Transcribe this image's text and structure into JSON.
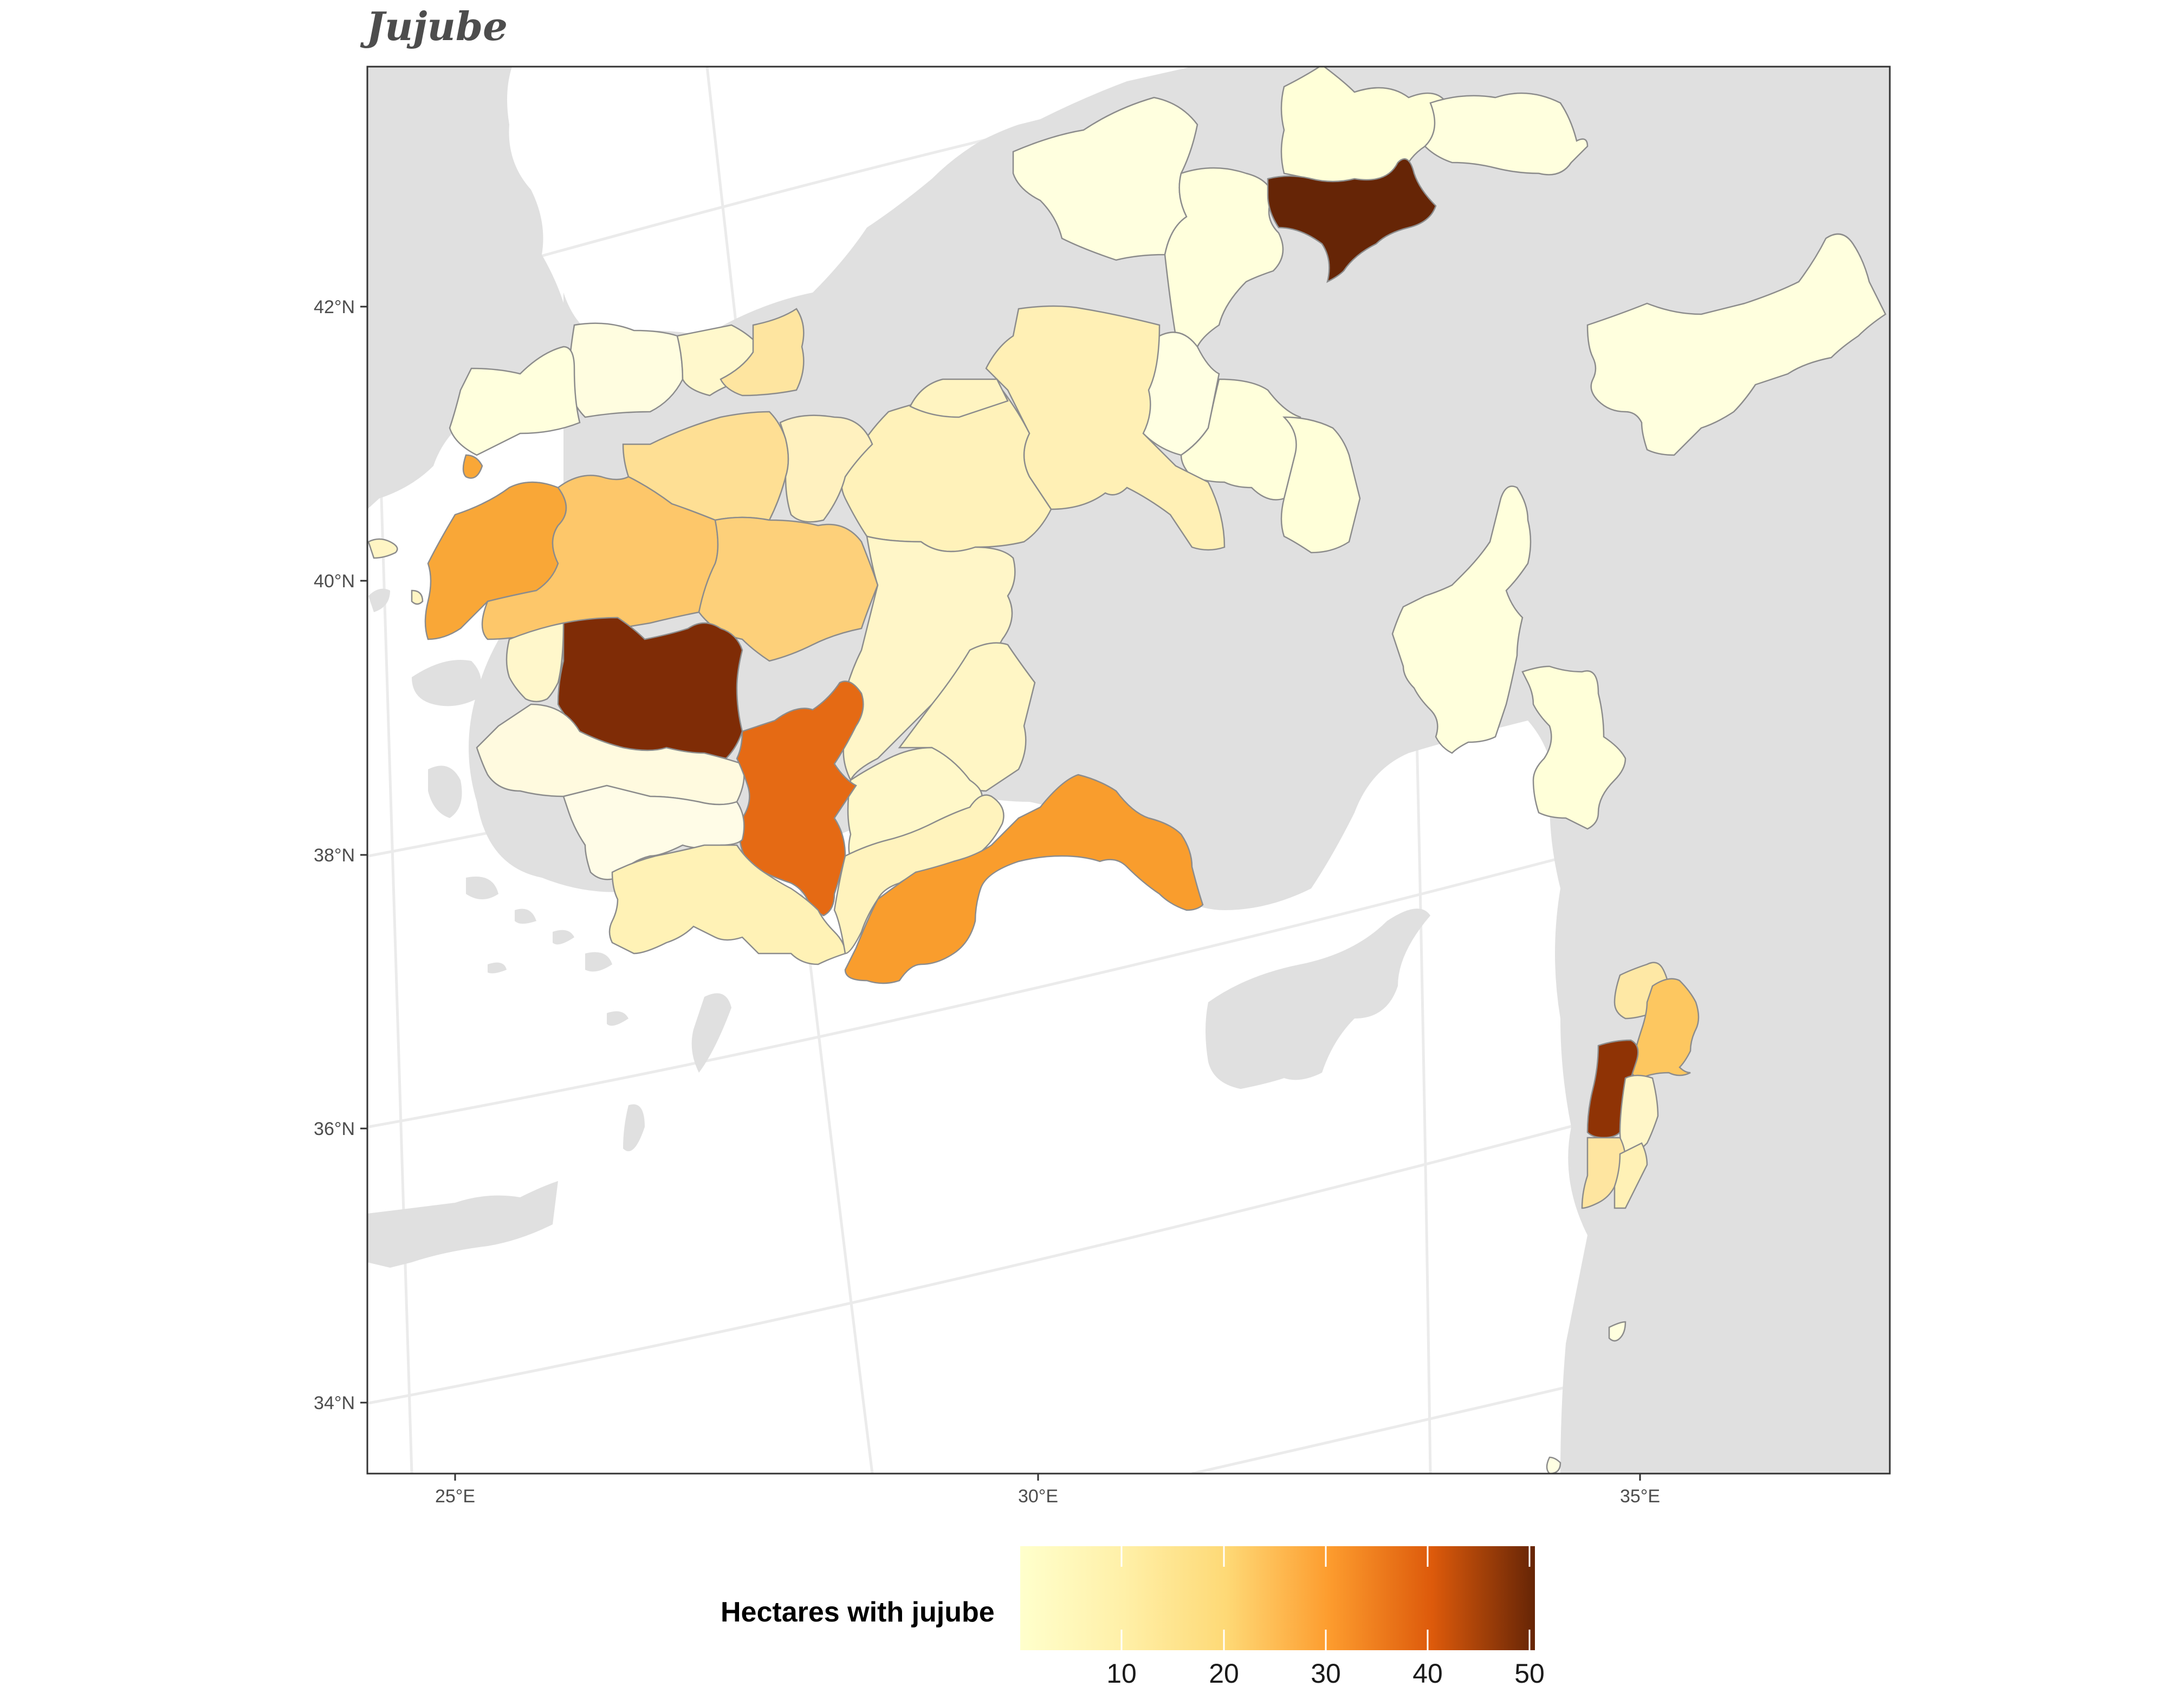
{
  "title": "Jujube",
  "legend": {
    "title": "Hectares with jujube",
    "ticks": [
      "10",
      "20",
      "30",
      "40",
      "50"
    ],
    "colors": [
      "#ffffcc",
      "#fed976",
      "#fd9c2e",
      "#e6550d",
      "#b33e04",
      "#662506"
    ]
  },
  "axes": {
    "lat_labels": [
      "42°N",
      "40°N",
      "38°N",
      "36°N",
      "34°N"
    ],
    "lon_labels": [
      "25°E",
      "30°E",
      "35°E"
    ]
  },
  "colors": {
    "land": "#e0e0e0",
    "sea": "#ffffff",
    "graticule": "#ebebeb",
    "border": "#8c8c8c",
    "panel_border": "#333333"
  },
  "regions": [
    {
      "name": "north-east-province-1",
      "value": 3
    },
    {
      "name": "north-east-province-2",
      "value": 3
    },
    {
      "name": "north-east-province-3",
      "value": 3
    },
    {
      "name": "north-east-province-4",
      "value": 3
    },
    {
      "name": "north-east-dark-province",
      "value": 52
    },
    {
      "name": "north-east-province-5",
      "value": 2
    },
    {
      "name": "north-east-province-6",
      "value": 3
    },
    {
      "name": "north-east-province-7",
      "value": 3
    },
    {
      "name": "north-central-province-1",
      "value": 8
    },
    {
      "name": "north-central-province-2",
      "value": 7
    },
    {
      "name": "north-central-province-3",
      "value": 6
    },
    {
      "name": "north-central-province-4",
      "value": 3
    },
    {
      "name": "east-province-1",
      "value": 3
    },
    {
      "name": "east-province-2",
      "value": 3
    },
    {
      "name": "central-east-province-1",
      "value": 3
    },
    {
      "name": "central-east-province-2",
      "value": 3
    },
    {
      "name": "levant-province-1",
      "value": 10
    },
    {
      "name": "levant-province-2",
      "value": 20
    },
    {
      "name": "levant-dark-province",
      "value": 45
    },
    {
      "name": "levant-province-3",
      "value": 5
    },
    {
      "name": "levant-province-4",
      "value": 8
    },
    {
      "name": "levant-province-5",
      "value": 6
    },
    {
      "name": "thrace-province-1",
      "value": 3
    },
    {
      "name": "thrace-province-2",
      "value": 3
    },
    {
      "name": "thrace-province-3",
      "value": 6
    },
    {
      "name": "thrace-province-4",
      "value": 12
    },
    {
      "name": "marmara-province-1",
      "value": 15
    },
    {
      "name": "marmara-province-2",
      "value": 6
    },
    {
      "name": "aegean-orange-province",
      "value": 28
    },
    {
      "name": "marmara-province-3",
      "value": 21
    },
    {
      "name": "marmara-province-4",
      "value": 17
    },
    {
      "name": "west-central-province-1",
      "value": 4
    },
    {
      "name": "west-central-province-2",
      "value": 7
    },
    {
      "name": "west-central-province-3",
      "value": 6
    },
    {
      "name": "west-dark-province",
      "value": 48
    },
    {
      "name": "west-province-1",
      "value": 4
    },
    {
      "name": "west-province-2",
      "value": 3
    },
    {
      "name": "west-orange-red-province",
      "value": 36
    },
    {
      "name": "central-province-1",
      "value": 5
    },
    {
      "name": "central-province-2",
      "value": 5
    },
    {
      "name": "aegean-province-1",
      "value": 2
    },
    {
      "name": "aegean-province-2",
      "value": 6
    },
    {
      "name": "aegean-province-3",
      "value": 5
    },
    {
      "name": "south-orange-province",
      "value": 28
    }
  ]
}
